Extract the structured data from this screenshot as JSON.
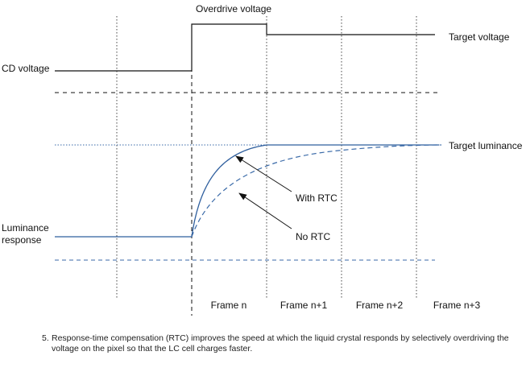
{
  "labels": {
    "overdrive_voltage": "Overdrive voltage",
    "target_voltage": "Target voltage",
    "lcd_voltage": "CD voltage",
    "target_luminance": "Target luminance",
    "with_rtc": "With RTC",
    "no_rtc": "No RTC",
    "luminance_response_line1": "Luminance",
    "luminance_response_line2": "response"
  },
  "frames": [
    "Frame n",
    "Frame n+1",
    "Frame n+2",
    "Frame n+3"
  ],
  "caption": {
    "number": "5.",
    "text": "Response-time compensation (RTC) improves the speed at which the liquid crystal responds by selectively overdriving the voltage on the pixel so that the LC cell charges faster."
  },
  "colors": {
    "voltage_line": "#111111",
    "luminance_curve": "#2f5f9e",
    "grid": "#333333",
    "luminance_guides": "#3a6aa8"
  }
}
